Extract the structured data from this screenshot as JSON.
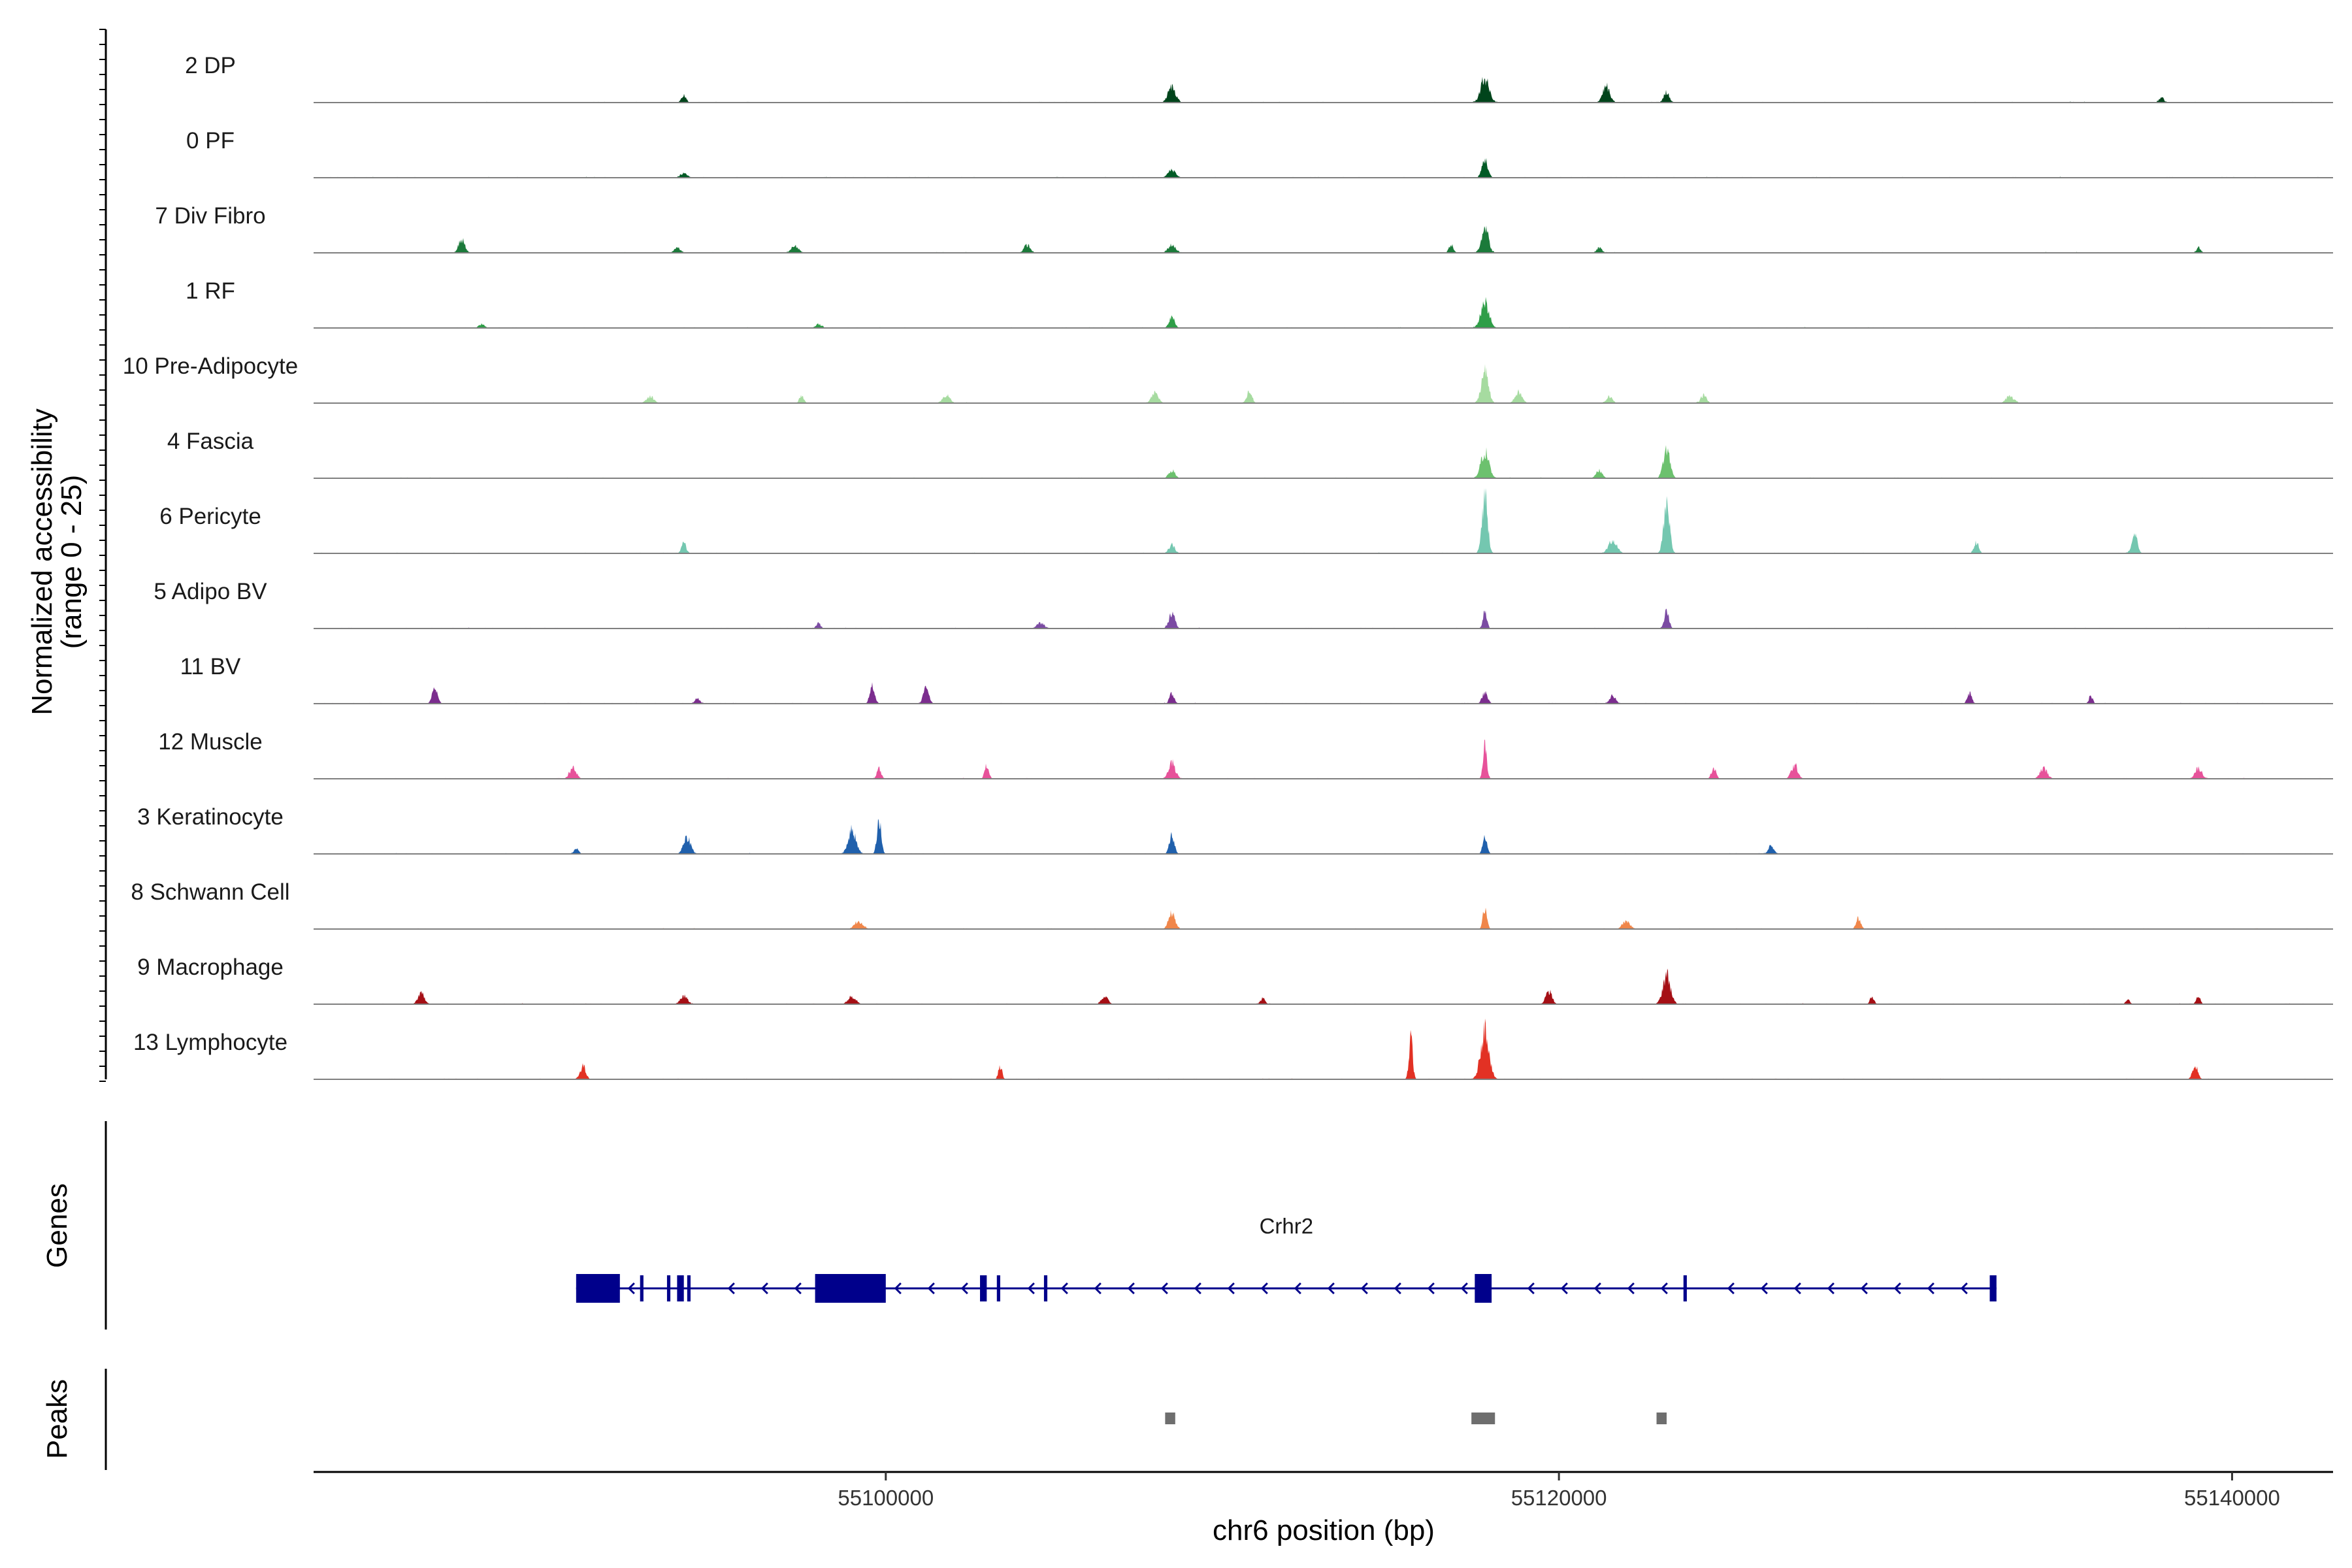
{
  "chart_data": {
    "type": "area",
    "chromosome": "chr6",
    "xlabel": "chr6 position (bp)",
    "ylabel_line1": "Normalized accessibility",
    "ylabel_line2": "(range 0 - 25)",
    "xlim": [
      55083000,
      55143000
    ],
    "x_ticks": [
      55100000,
      55120000,
      55140000
    ],
    "x_tick_labels": [
      "55100000",
      "55120000",
      "55140000"
    ],
    "ylim": [
      0,
      25
    ],
    "genes_label": "Genes",
    "peaks_label": "Peaks",
    "series": [
      {
        "name": "2 DP",
        "color": "#00441b",
        "peaks": [
          [
            55094000,
            3
          ],
          [
            55108500,
            6
          ],
          [
            55117800,
            9
          ],
          [
            55121400,
            6
          ],
          [
            55123200,
            4
          ],
          [
            55137900,
            2
          ]
        ]
      },
      {
        "name": "0 PF",
        "color": "#005a25",
        "peaks": [
          [
            55094000,
            1.5
          ],
          [
            55108500,
            3
          ],
          [
            55117800,
            7
          ]
        ]
      },
      {
        "name": "7 Div Fibro",
        "color": "#1b7a3a",
        "peaks": [
          [
            55087400,
            5
          ],
          [
            55093800,
            2
          ],
          [
            55097300,
            2.5
          ],
          [
            55104200,
            3
          ],
          [
            55108500,
            3
          ],
          [
            55116800,
            3
          ],
          [
            55117800,
            10
          ],
          [
            55121200,
            2
          ],
          [
            55139000,
            2
          ]
        ]
      },
      {
        "name": "1 RF",
        "color": "#2f9e48",
        "peaks": [
          [
            55088000,
            1.5
          ],
          [
            55098000,
            1.5
          ],
          [
            55108500,
            4
          ],
          [
            55117800,
            10
          ]
        ]
      },
      {
        "name": "10 Pre-Adipocyte",
        "color": "#a6dba0",
        "peaks": [
          [
            55093000,
            2.5
          ],
          [
            55097500,
            3
          ],
          [
            55101800,
            3
          ],
          [
            55108000,
            4
          ],
          [
            55110800,
            4
          ],
          [
            55117800,
            12
          ],
          [
            55118800,
            4
          ],
          [
            55121500,
            2.5
          ],
          [
            55124300,
            3
          ],
          [
            55133400,
            2.5
          ]
        ]
      },
      {
        "name": "4 Fascia",
        "color": "#6cc16e",
        "peaks": [
          [
            55108500,
            3
          ],
          [
            55117800,
            10
          ],
          [
            55121200,
            3
          ],
          [
            55123200,
            11
          ]
        ]
      },
      {
        "name": "6 Pericyte",
        "color": "#74c7b0",
        "peaks": [
          [
            55094000,
            4
          ],
          [
            55108500,
            3
          ],
          [
            55117800,
            22
          ],
          [
            55121600,
            5
          ],
          [
            55123200,
            17
          ],
          [
            55132400,
            4
          ],
          [
            55137100,
            7
          ]
        ]
      },
      {
        "name": "5 Adipo BV",
        "color": "#7b4ba3",
        "peaks": [
          [
            55098000,
            2
          ],
          [
            55104600,
            2
          ],
          [
            55108500,
            6
          ],
          [
            55117800,
            6
          ],
          [
            55123200,
            7
          ]
        ]
      },
      {
        "name": "11 BV",
        "color": "#7b2d8e",
        "peaks": [
          [
            55086600,
            6
          ],
          [
            55094400,
            2
          ],
          [
            55099600,
            7
          ],
          [
            55101200,
            7
          ],
          [
            55108500,
            4
          ],
          [
            55117800,
            4
          ],
          [
            55121600,
            3
          ],
          [
            55132200,
            4
          ],
          [
            55135800,
            3
          ]
        ]
      },
      {
        "name": "12 Muscle",
        "color": "#e7529a",
        "peaks": [
          [
            55090700,
            4
          ],
          [
            55099800,
            4
          ],
          [
            55103000,
            5
          ],
          [
            55108500,
            6
          ],
          [
            55117800,
            12
          ],
          [
            55124600,
            4
          ],
          [
            55127000,
            5
          ],
          [
            55134400,
            4
          ],
          [
            55139000,
            4
          ]
        ]
      },
      {
        "name": "3 Keratinocyte",
        "color": "#2060ac",
        "peaks": [
          [
            55090800,
            2
          ],
          [
            55094100,
            6
          ],
          [
            55099000,
            9
          ],
          [
            55099800,
            13
          ],
          [
            55108500,
            7
          ],
          [
            55117800,
            6
          ],
          [
            55126300,
            3
          ]
        ]
      },
      {
        "name": "8 Schwann Cell",
        "color": "#f0864a",
        "peaks": [
          [
            55099200,
            3
          ],
          [
            55108500,
            6
          ],
          [
            55117800,
            8
          ],
          [
            55122000,
            3
          ],
          [
            55128900,
            4
          ]
        ]
      },
      {
        "name": "9 Macrophage",
        "color": "#a50f15",
        "peaks": [
          [
            55086200,
            4
          ],
          [
            55094000,
            3
          ],
          [
            55099000,
            3
          ],
          [
            55106500,
            3
          ],
          [
            55111200,
            2
          ],
          [
            55119700,
            5
          ],
          [
            55123200,
            11
          ],
          [
            55129300,
            3
          ],
          [
            55136900,
            2
          ],
          [
            55139000,
            3
          ]
        ]
      },
      {
        "name": "13 Lymphocyte",
        "color": "#e23124",
        "peaks": [
          [
            55091000,
            5
          ],
          [
            55103400,
            5
          ],
          [
            55115600,
            15
          ],
          [
            55117800,
            19
          ],
          [
            55138900,
            5
          ]
        ]
      }
    ],
    "gene": {
      "name": "Crhr2",
      "strand": "-",
      "start": 55090800,
      "end": 55133000,
      "color": "#00008b",
      "exons": [
        [
          55090800,
          55092100
        ],
        [
          55092700,
          55092800
        ],
        [
          55093500,
          55093600
        ],
        [
          55093800,
          55094000
        ],
        [
          55094100,
          55094200
        ],
        [
          55097900,
          55100000
        ],
        [
          55102800,
          55103000
        ],
        [
          55103300,
          55103400
        ],
        [
          55104700,
          55104800
        ],
        [
          55117500,
          55118000
        ],
        [
          55123700,
          55123800
        ],
        [
          55132800,
          55133000
        ]
      ]
    },
    "peak_regions": [
      [
        55108300,
        55108600
      ],
      [
        55117400,
        55118100
      ],
      [
        55122900,
        55123200
      ]
    ],
    "peak_color": "#6e6e6e"
  }
}
